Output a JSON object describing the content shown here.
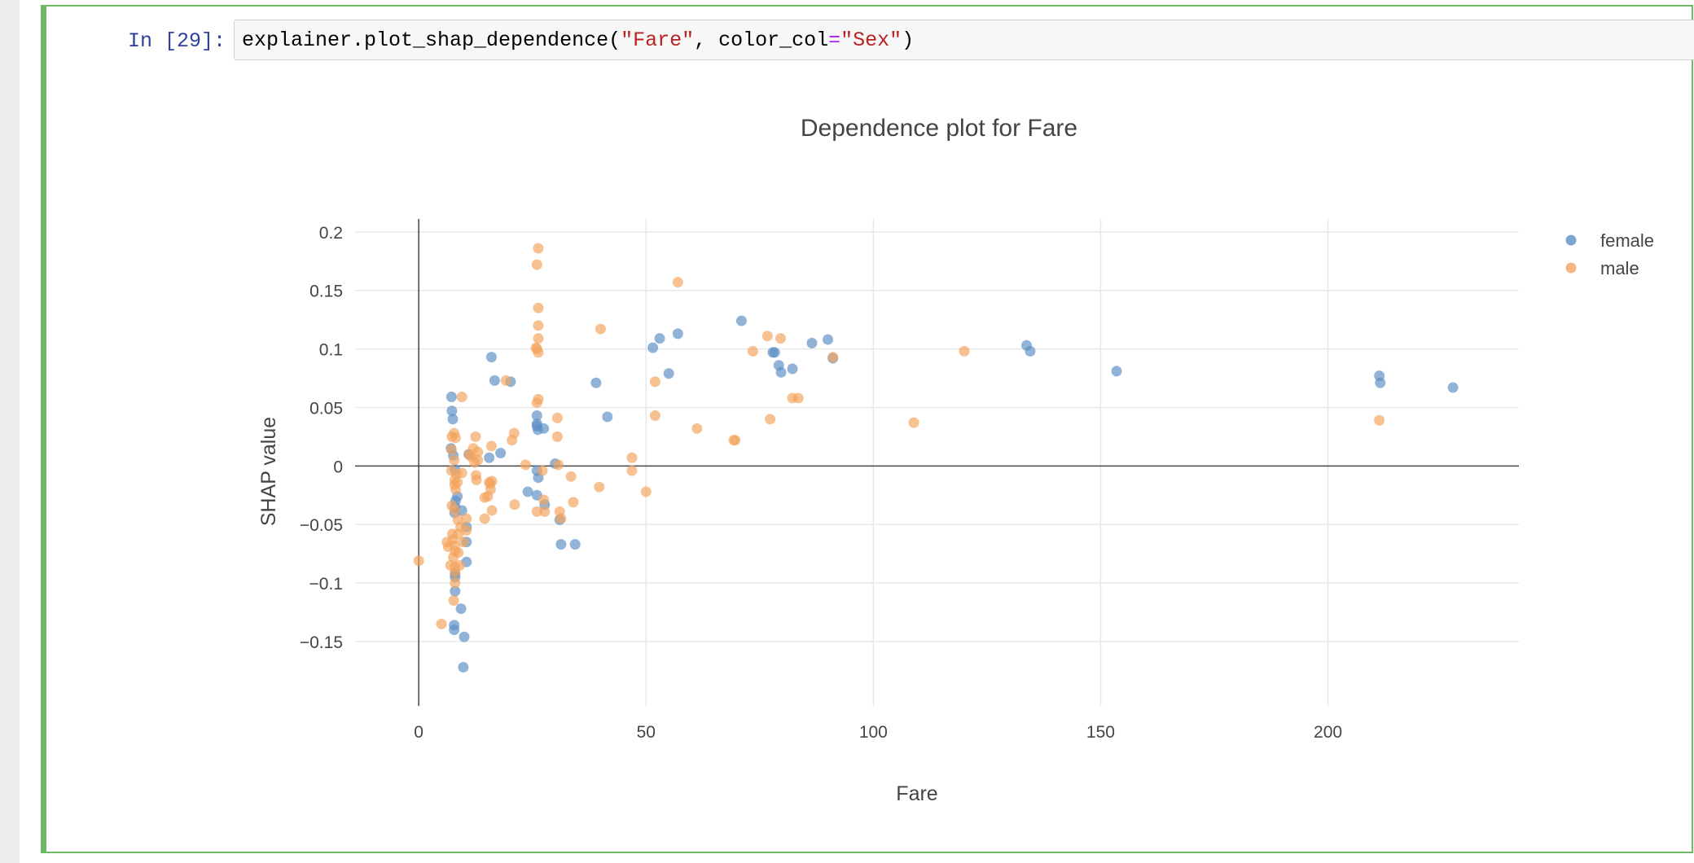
{
  "cell": {
    "prompt": "In [29]:",
    "code_tokens": [
      {
        "text": "explainer.plot_shap_dependence(",
        "kind": "plain"
      },
      {
        "text": "\"Fare\"",
        "kind": "str"
      },
      {
        "text": ", color_col",
        "kind": "plain"
      },
      {
        "text": "=",
        "kind": "op"
      },
      {
        "text": "\"Sex\"",
        "kind": "str"
      },
      {
        "text": ")",
        "kind": "plain"
      }
    ]
  },
  "colors": {
    "female": "#5b8fc4",
    "male": "#f3a35e",
    "cell_border": "#6fb865"
  },
  "chart_data": {
    "type": "scatter",
    "title": "Dependence plot for Fare",
    "xlabel": "Fare",
    "ylabel": "SHAP value",
    "xlim": [
      -14,
      242
    ],
    "ylim": [
      -0.205,
      0.211
    ],
    "x_ticks": [
      0,
      50,
      100,
      150,
      200
    ],
    "x_tick_labels": [
      "0",
      "50",
      "100",
      "150",
      "200"
    ],
    "y_ticks": [
      0.2,
      0.15,
      0.1,
      0.05,
      0,
      -0.05,
      -0.1,
      -0.15
    ],
    "y_tick_labels": [
      "0.2",
      "0.15",
      "0.1",
      "0.05",
      "0",
      "−0.05",
      "−0.1",
      "−0.15"
    ],
    "grid": true,
    "legend_position": "top-right",
    "series": [
      {
        "name": "female",
        "points": [
          [
            7.2,
            0.059
          ],
          [
            7.3,
            0.047
          ],
          [
            7.5,
            0.04
          ],
          [
            7.1,
            0.015
          ],
          [
            7.6,
            0.009
          ],
          [
            8.0,
            -0.003
          ],
          [
            8.5,
            -0.026
          ],
          [
            8.1,
            -0.03
          ],
          [
            8.0,
            -0.035
          ],
          [
            7.9,
            -0.04
          ],
          [
            9.5,
            -0.038
          ],
          [
            10.5,
            -0.052
          ],
          [
            10.5,
            -0.065
          ],
          [
            10.5,
            -0.082
          ],
          [
            8.0,
            -0.092
          ],
          [
            8.0,
            -0.095
          ],
          [
            8.0,
            -0.107
          ],
          [
            9.3,
            -0.122
          ],
          [
            7.8,
            -0.136
          ],
          [
            7.8,
            -0.14
          ],
          [
            10.0,
            -0.146
          ],
          [
            9.8,
            -0.172
          ],
          [
            11.0,
            0.01
          ],
          [
            15.5,
            0.007
          ],
          [
            16.0,
            0.093
          ],
          [
            16.7,
            0.073
          ],
          [
            18.0,
            0.011
          ],
          [
            20.2,
            0.072
          ],
          [
            24.0,
            -0.022
          ],
          [
            26.0,
            0.043
          ],
          [
            26.0,
            0.036
          ],
          [
            26.0,
            0.034
          ],
          [
            26.2,
            0.031
          ],
          [
            27.5,
            0.032
          ],
          [
            26.0,
            -0.004
          ],
          [
            26.3,
            -0.01
          ],
          [
            26.0,
            -0.025
          ],
          [
            27.7,
            -0.033
          ],
          [
            30.0,
            0.002
          ],
          [
            31.0,
            -0.046
          ],
          [
            31.3,
            -0.067
          ],
          [
            34.4,
            -0.067
          ],
          [
            39.0,
            0.071
          ],
          [
            41.5,
            0.042
          ],
          [
            51.5,
            0.101
          ],
          [
            53.0,
            0.109
          ],
          [
            55.0,
            0.079
          ],
          [
            57.0,
            0.113
          ],
          [
            71.0,
            0.124
          ],
          [
            77.9,
            0.097
          ],
          [
            78.3,
            0.097
          ],
          [
            79.2,
            0.086
          ],
          [
            79.7,
            0.08
          ],
          [
            82.2,
            0.083
          ],
          [
            86.5,
            0.105
          ],
          [
            90.0,
            0.108
          ],
          [
            91.1,
            0.092
          ],
          [
            133.7,
            0.103
          ],
          [
            134.5,
            0.098
          ],
          [
            153.5,
            0.081
          ],
          [
            211.3,
            0.077
          ],
          [
            211.5,
            0.071
          ],
          [
            227.5,
            0.067
          ]
        ]
      },
      {
        "name": "male",
        "points": [
          [
            0.0,
            -0.081
          ],
          [
            5.0,
            -0.135
          ],
          [
            6.2,
            -0.065
          ],
          [
            6.5,
            -0.069
          ],
          [
            7.0,
            -0.085
          ],
          [
            7.2,
            -0.004
          ],
          [
            7.2,
            0.014
          ],
          [
            7.3,
            0.025
          ],
          [
            7.3,
            -0.034
          ],
          [
            7.4,
            -0.058
          ],
          [
            7.5,
            -0.063
          ],
          [
            7.6,
            -0.078
          ],
          [
            7.7,
            -0.115
          ],
          [
            7.8,
            0.028
          ],
          [
            7.8,
            0.005
          ],
          [
            7.9,
            -0.012
          ],
          [
            7.9,
            -0.016
          ],
          [
            7.9,
            -0.068
          ],
          [
            8.0,
            -0.073
          ],
          [
            8.0,
            -0.038
          ],
          [
            8.0,
            -0.1
          ],
          [
            8.0,
            -0.086
          ],
          [
            8.0,
            -0.091
          ],
          [
            8.1,
            0.024
          ],
          [
            8.1,
            -0.02
          ],
          [
            8.3,
            -0.007
          ],
          [
            8.5,
            -0.014
          ],
          [
            8.6,
            -0.046
          ],
          [
            8.7,
            -0.058
          ],
          [
            8.7,
            -0.074
          ],
          [
            9.0,
            -0.085
          ],
          [
            9.2,
            -0.052
          ],
          [
            9.5,
            0.059
          ],
          [
            9.5,
            -0.006
          ],
          [
            9.8,
            -0.065
          ],
          [
            10.5,
            -0.045
          ],
          [
            10.5,
            -0.055
          ],
          [
            11.1,
            0.01
          ],
          [
            11.5,
            0.008
          ],
          [
            12.0,
            0.015
          ],
          [
            12.3,
            0.003
          ],
          [
            12.5,
            0.025
          ],
          [
            12.6,
            -0.008
          ],
          [
            12.7,
            -0.012
          ],
          [
            13.0,
            0.012
          ],
          [
            13.0,
            0.005
          ],
          [
            14.5,
            -0.045
          ],
          [
            14.5,
            -0.027
          ],
          [
            15.2,
            -0.026
          ],
          [
            15.5,
            -0.014
          ],
          [
            15.7,
            -0.015
          ],
          [
            15.8,
            -0.02
          ],
          [
            16.0,
            0.017
          ],
          [
            16.1,
            -0.038
          ],
          [
            16.1,
            -0.013
          ],
          [
            19.2,
            0.073
          ],
          [
            20.5,
            0.022
          ],
          [
            21.0,
            0.028
          ],
          [
            21.1,
            -0.033
          ],
          [
            23.5,
            0.001
          ],
          [
            25.8,
            0.101
          ],
          [
            26.0,
            0.1
          ],
          [
            26.0,
            0.172
          ],
          [
            26.3,
            0.186
          ],
          [
            26.3,
            0.135
          ],
          [
            26.3,
            0.12
          ],
          [
            26.3,
            0.109
          ],
          [
            26.3,
            0.097
          ],
          [
            26.0,
            0.054
          ],
          [
            26.3,
            0.057
          ],
          [
            26.0,
            -0.039
          ],
          [
            27.2,
            -0.004
          ],
          [
            27.5,
            -0.029
          ],
          [
            27.7,
            -0.039
          ],
          [
            30.5,
            0.041
          ],
          [
            30.5,
            0.025
          ],
          [
            30.7,
            0.001
          ],
          [
            31.0,
            -0.039
          ],
          [
            31.3,
            -0.045
          ],
          [
            33.5,
            -0.009
          ],
          [
            34.0,
            -0.031
          ],
          [
            39.7,
            -0.018
          ],
          [
            40.0,
            0.117
          ],
          [
            46.9,
            0.007
          ],
          [
            46.9,
            -0.004
          ],
          [
            50.0,
            -0.022
          ],
          [
            52.0,
            0.072
          ],
          [
            52.0,
            0.043
          ],
          [
            57.0,
            0.157
          ],
          [
            61.2,
            0.032
          ],
          [
            69.3,
            0.022
          ],
          [
            69.6,
            0.022
          ],
          [
            73.5,
            0.098
          ],
          [
            76.7,
            0.111
          ],
          [
            77.3,
            0.04
          ],
          [
            79.6,
            0.109
          ],
          [
            82.2,
            0.058
          ],
          [
            83.5,
            0.058
          ],
          [
            91.1,
            0.093
          ],
          [
            108.9,
            0.037
          ],
          [
            120.0,
            0.098
          ],
          [
            211.3,
            0.039
          ]
        ]
      }
    ]
  }
}
